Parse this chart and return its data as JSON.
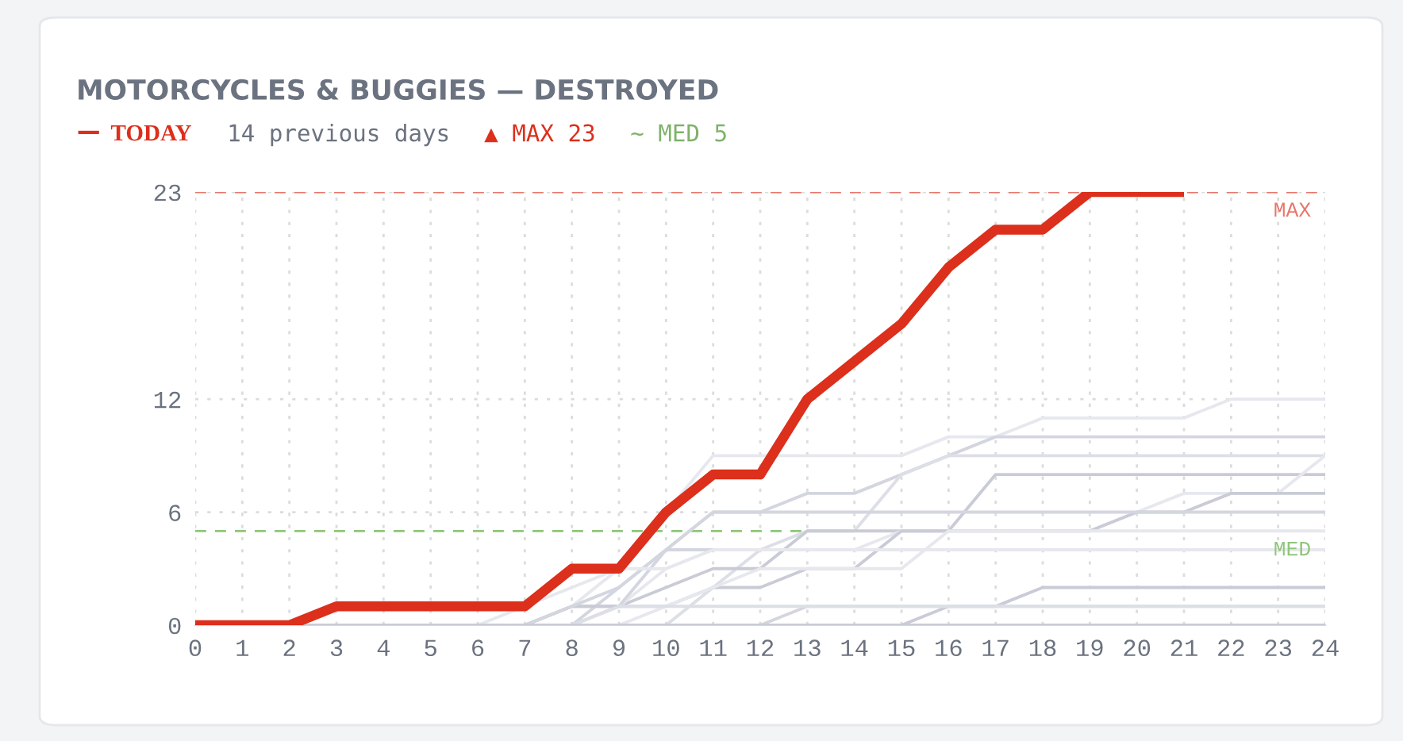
{
  "chart_data": {
    "type": "line",
    "title": "MOTORCYCLES & BUGGIES — DESTROYED",
    "x": [
      0,
      1,
      2,
      3,
      4,
      5,
      6,
      7,
      8,
      9,
      10,
      11,
      12,
      13,
      14,
      15,
      16,
      17,
      18,
      19,
      20,
      21,
      22,
      23,
      24
    ],
    "series": [
      {
        "color": "#e6e8ee",
        "values": [
          0,
          0,
          0,
          0,
          0,
          0,
          0,
          0,
          1,
          3,
          6,
          9,
          9,
          9,
          9,
          9,
          10,
          10,
          11,
          11,
          11,
          11,
          12,
          12,
          12
        ]
      },
      {
        "color": "#d3d6df",
        "values": [
          0,
          0,
          0,
          0,
          0,
          0,
          0,
          0,
          0,
          2,
          4,
          6,
          6,
          7,
          7,
          8,
          9,
          10,
          10,
          10,
          10,
          10,
          10,
          10,
          10
        ]
      },
      {
        "color": "#dcdfe6",
        "values": [
          0,
          0,
          0,
          0,
          0,
          0,
          0,
          0,
          0,
          0,
          0,
          2,
          4,
          5,
          5,
          8,
          9,
          9,
          9,
          9,
          9,
          9,
          9,
          9,
          9
        ]
      },
      {
        "color": "#c9ccd6",
        "values": [
          0,
          0,
          0,
          0,
          0,
          0,
          0,
          0,
          1,
          1,
          2,
          3,
          3,
          5,
          5,
          5,
          5,
          8,
          8,
          8,
          8,
          8,
          8,
          8,
          8
        ]
      },
      {
        "color": "#e6e8ee",
        "values": [
          0,
          0,
          0,
          0,
          0,
          0,
          0,
          0,
          0,
          1,
          3,
          4,
          4,
          4,
          4,
          5,
          5,
          5,
          5,
          5,
          6,
          7,
          7,
          7,
          9
        ]
      },
      {
        "color": "#c9ccd6",
        "values": [
          0,
          0,
          0,
          0,
          0,
          0,
          0,
          0,
          1,
          1,
          1,
          2,
          2,
          3,
          3,
          5,
          5,
          5,
          5,
          5,
          6,
          6,
          7,
          7,
          7
        ]
      },
      {
        "color": "#d3d6df",
        "values": [
          0,
          0,
          0,
          0,
          0,
          0,
          0,
          0,
          0,
          1,
          4,
          6,
          6,
          6,
          6,
          6,
          6,
          6,
          6,
          6,
          6,
          6,
          6,
          6,
          6
        ]
      },
      {
        "color": "#d3d6df",
        "values": [
          0,
          0,
          0,
          0,
          0,
          0,
          0,
          0,
          1,
          2,
          4,
          4,
          4,
          4,
          4,
          4,
          4,
          4,
          4,
          4,
          4,
          4,
          4,
          4,
          4
        ]
      },
      {
        "color": "#e6e8ee",
        "values": [
          0,
          0,
          0,
          0,
          0,
          0,
          0,
          0,
          0,
          0,
          1,
          2,
          3,
          3,
          3,
          3,
          5,
          5,
          5,
          5,
          5,
          5,
          5,
          5,
          5
        ]
      },
      {
        "color": "#c9ccd6",
        "values": [
          0,
          0,
          0,
          0,
          0,
          0,
          0,
          0,
          0,
          0,
          0,
          0,
          0,
          0,
          0,
          0,
          1,
          1,
          2,
          2,
          2,
          2,
          2,
          2,
          2
        ]
      },
      {
        "color": "#d3d6df",
        "values": [
          0,
          0,
          0,
          0,
          0,
          0,
          0,
          0,
          0,
          0,
          0,
          0,
          0,
          1,
          1,
          1,
          1,
          1,
          1,
          1,
          1,
          1,
          1,
          1,
          1
        ]
      },
      {
        "color": "#dcdfe6",
        "values": [
          0,
          0,
          0,
          0,
          0,
          0,
          0,
          0,
          0,
          1,
          1,
          1,
          1,
          1,
          1,
          1,
          1,
          1,
          1,
          1,
          1,
          1,
          1,
          1,
          1
        ]
      },
      {
        "color": "#e6e8ee",
        "values": [
          0,
          0,
          0,
          0,
          0,
          0,
          0,
          1,
          2,
          3,
          3,
          4,
          4,
          4,
          4,
          4,
          4,
          4,
          4,
          4,
          4,
          4,
          4,
          4,
          4
        ]
      },
      {
        "color": "#c9ccd6",
        "values": [
          0,
          0,
          0,
          0,
          0,
          0,
          0,
          0,
          0,
          0,
          0,
          0,
          0,
          0,
          0,
          0,
          0,
          0,
          0,
          0,
          0,
          0,
          0,
          0,
          0
        ]
      },
      {
        "name": "TODAY",
        "color": "#dc2f1c",
        "x": [
          0,
          1,
          2,
          3,
          4,
          5,
          6,
          7,
          8,
          9,
          10,
          11,
          12,
          13,
          14,
          15,
          16,
          17,
          18,
          19,
          20,
          21
        ],
        "values": [
          0,
          0,
          0,
          1,
          1,
          1,
          1,
          1,
          3,
          3,
          6,
          8,
          8,
          12,
          14,
          16,
          19,
          21,
          21,
          23,
          23,
          23
        ]
      }
    ],
    "xlim": [
      0,
      24
    ],
    "xticks": [
      0,
      1,
      2,
      3,
      4,
      5,
      6,
      7,
      8,
      9,
      10,
      11,
      12,
      13,
      14,
      15,
      16,
      17,
      18,
      19,
      20,
      21,
      22,
      23,
      24
    ],
    "ylim": [
      0,
      23
    ],
    "yticks": [
      0,
      6,
      12,
      23
    ],
    "grid": true,
    "legend": "top left",
    "line_style": "solid",
    "ref_lines": [
      {
        "axis": "y",
        "value": 23,
        "label": "MAX",
        "color": "#e8766b",
        "line_style": "dashed"
      },
      {
        "axis": "y",
        "value": 5,
        "label": "MED",
        "color": "#8fc67a",
        "line_style": "dashed"
      }
    ],
    "annotations": [
      "14 previous days",
      "▲ MAX 23",
      "~ MED 5"
    ]
  }
}
